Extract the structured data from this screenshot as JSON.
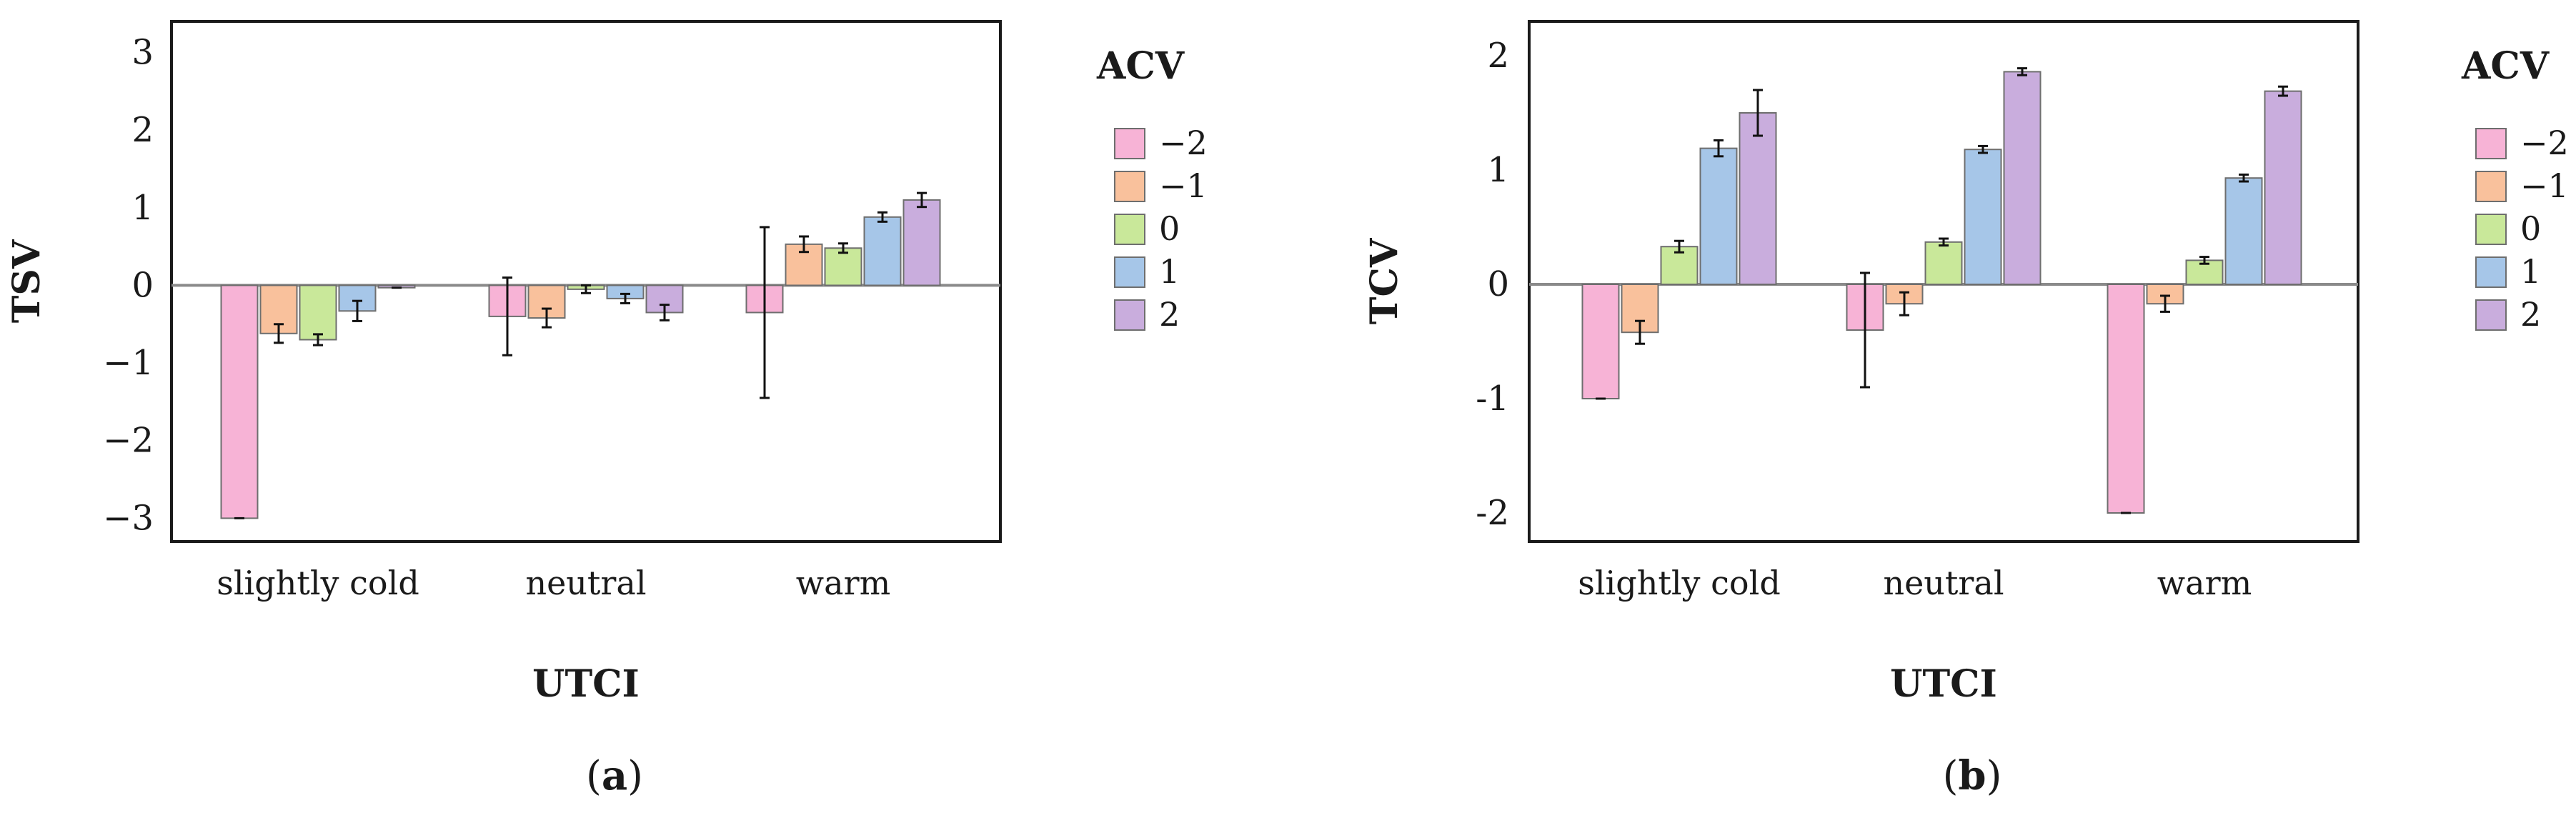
{
  "colors": {
    "-2": "#f7b3d6",
    "-1": "#f9c19c",
    "0": "#c9e89a",
    "1": "#a6c6e8",
    "2": "#c9addd",
    "frame": "#1a1a1a",
    "zero_line": "#8a8a8a",
    "error_bar": "#111111"
  },
  "chart_data": [
    {
      "id": "a",
      "type": "bar",
      "panel_label": "a",
      "xlabel": "UTCI",
      "ylabel": "TSV",
      "ylim": [
        -3.3,
        3.4
      ],
      "yticks": [
        "3",
        "2",
        "1",
        "0",
        "−1",
        "−2",
        "−3"
      ],
      "ytick_values": [
        3,
        2,
        1,
        0,
        -1,
        -2,
        -3
      ],
      "categories": [
        "slightly cold",
        "neutral",
        "warm"
      ],
      "legend_title": "ACV",
      "legend_labels": [
        "−2",
        "−1",
        "0",
        "1",
        "2"
      ],
      "series": [
        {
          "name": "−2",
          "key": "-2",
          "values": [
            -3.0,
            -0.4,
            -0.35
          ],
          "errors": [
            0.0,
            0.5,
            1.1
          ]
        },
        {
          "name": "−1",
          "key": "-1",
          "values": [
            -0.62,
            -0.42,
            0.53
          ],
          "errors": [
            0.12,
            0.12,
            0.1
          ]
        },
        {
          "name": "0",
          "key": "0",
          "values": [
            -0.7,
            -0.05,
            0.48
          ],
          "errors": [
            0.07,
            0.05,
            0.06
          ]
        },
        {
          "name": "1",
          "key": "1",
          "values": [
            -0.33,
            -0.17,
            0.88
          ],
          "errors": [
            0.13,
            0.06,
            0.06
          ]
        },
        {
          "name": "2",
          "key": "2",
          "values": [
            -0.03,
            -0.35,
            1.1
          ],
          "errors": [
            0.0,
            0.1,
            0.09
          ]
        }
      ]
    },
    {
      "id": "b",
      "type": "bar",
      "panel_label": "b",
      "xlabel": "UTCI",
      "ylabel": "TCV",
      "ylim": [
        -2.25,
        2.3
      ],
      "yticks": [
        "2",
        "1",
        "0",
        "-1",
        "-2"
      ],
      "ytick_values": [
        2,
        1,
        0,
        -1,
        -2
      ],
      "categories": [
        "slightly cold",
        "neutral",
        "warm"
      ],
      "legend_title": "ACV",
      "legend_labels": [
        "−2",
        "−1",
        "0",
        "1",
        "2"
      ],
      "series": [
        {
          "name": "−2",
          "key": "-2",
          "values": [
            -1.0,
            -0.4,
            -2.0
          ],
          "errors": [
            0.0,
            0.5,
            0.0
          ]
        },
        {
          "name": "−1",
          "key": "-1",
          "values": [
            -0.42,
            -0.17,
            -0.17
          ],
          "errors": [
            0.1,
            0.1,
            0.07
          ]
        },
        {
          "name": "0",
          "key": "0",
          "values": [
            0.33,
            0.37,
            0.21
          ],
          "errors": [
            0.05,
            0.03,
            0.03
          ]
        },
        {
          "name": "1",
          "key": "1",
          "values": [
            1.19,
            1.18,
            0.93
          ],
          "errors": [
            0.07,
            0.03,
            0.03
          ]
        },
        {
          "name": "2",
          "key": "2",
          "values": [
            1.5,
            1.86,
            1.69
          ],
          "errors": [
            0.2,
            0.03,
            0.04
          ]
        }
      ]
    }
  ]
}
